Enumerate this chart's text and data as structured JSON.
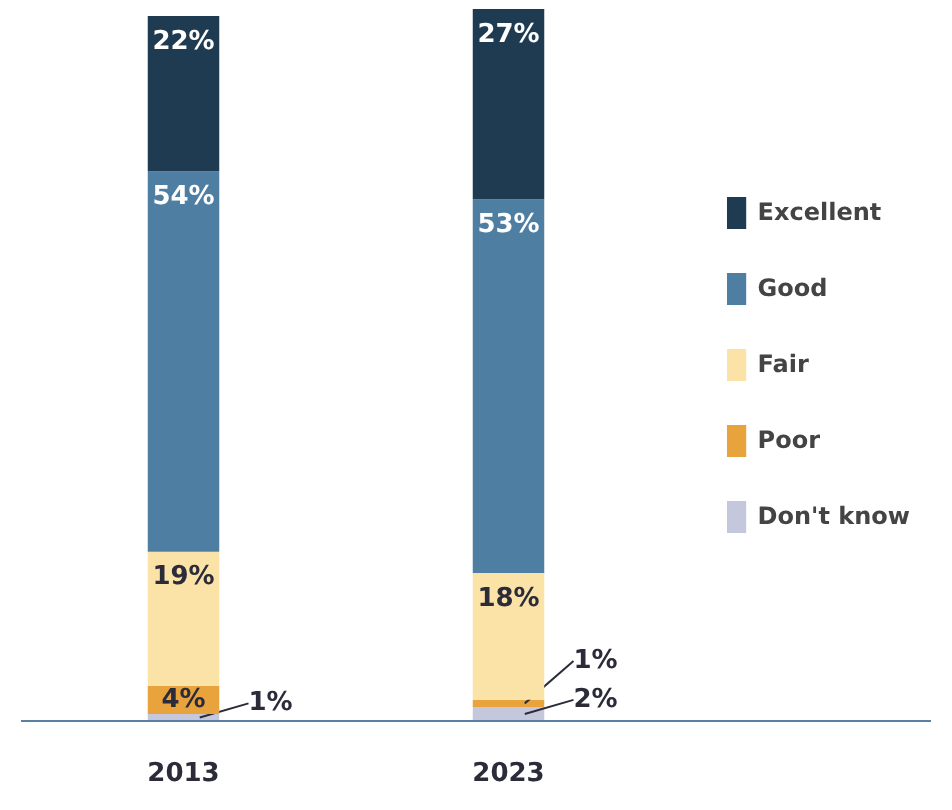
{
  "chart_data": {
    "type": "bar",
    "stacked": true,
    "categories": [
      "2013",
      "2023"
    ],
    "series": [
      {
        "name": "Don't know",
        "color": "#c5c8dc",
        "values": [
          1,
          2
        ],
        "value_labels": [
          "1%",
          "2%"
        ]
      },
      {
        "name": "Poor",
        "color": "#e8a33c",
        "values": [
          4,
          1
        ],
        "value_labels": [
          "4%",
          "1%"
        ]
      },
      {
        "name": "Fair",
        "color": "#fbe3a8",
        "values": [
          19,
          18
        ],
        "value_labels": [
          "19%",
          "18%"
        ]
      },
      {
        "name": "Good",
        "color": "#4f7ea3",
        "values": [
          54,
          53
        ],
        "value_labels": [
          "54%",
          "53%"
        ]
      },
      {
        "name": "Excellent",
        "color": "#1f3b52",
        "values": [
          22,
          27
        ],
        "value_labels": [
          "22%",
          "27%"
        ]
      }
    ],
    "legend": "right"
  }
}
